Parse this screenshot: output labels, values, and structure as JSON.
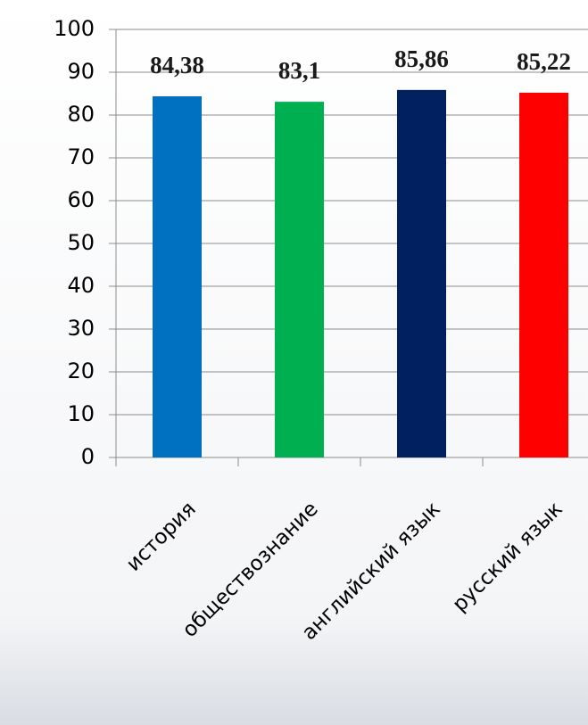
{
  "chart_data": {
    "type": "bar",
    "categories": [
      "история",
      "обществознание",
      "английский язык",
      "русский язык"
    ],
    "values": [
      84.38,
      83.1,
      85.86,
      85.22
    ],
    "value_labels": [
      "84,38",
      "83,1",
      "85,86",
      "85,22"
    ],
    "colors": [
      "#0070c0",
      "#00b050",
      "#002060",
      "#ff0000"
    ],
    "ylim": [
      0,
      100
    ],
    "yticks": [
      0,
      10,
      20,
      30,
      40,
      50,
      60,
      70,
      80,
      90,
      100
    ],
    "grid": true
  }
}
